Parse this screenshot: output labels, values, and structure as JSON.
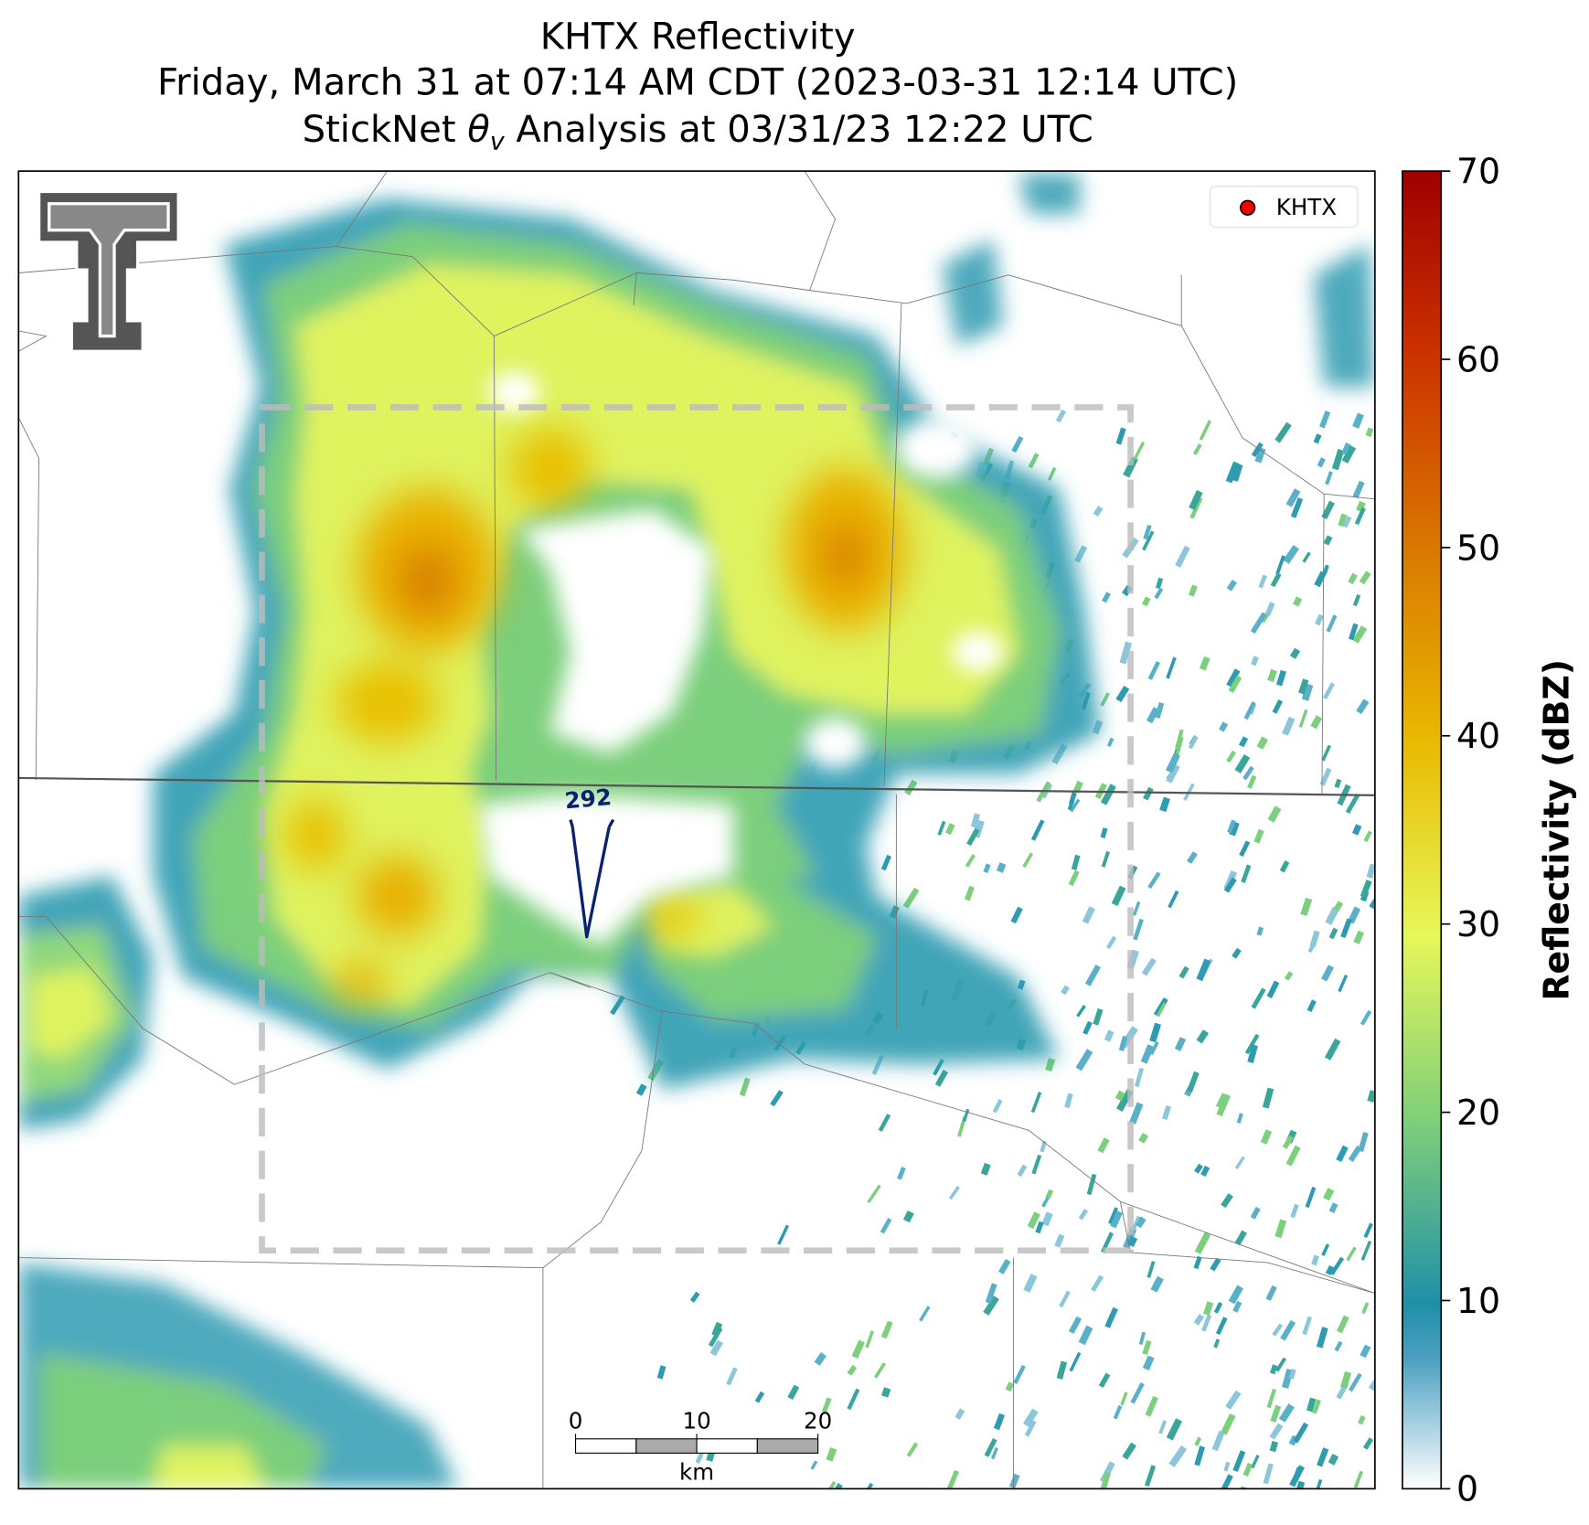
{
  "title_lines": [
    "KHTX Reflectivity",
    "Friday, March 31 at 07:14 AM CDT (2023-03-31 12:14 UTC)"
  ],
  "analysis_title": {
    "prefix": "StickNet ",
    "symbol": "θ",
    "subscript": "v",
    "suffix": " Analysis at 03/31/23 12:22 UTC"
  },
  "legend": {
    "label": "KHTX",
    "color": "#ff0000"
  },
  "contour_label": "292",
  "scale_bar": {
    "ticks": [
      0,
      10,
      20
    ],
    "unit": "km"
  },
  "colorbar": {
    "label": "Reflectivity (dBZ)",
    "lim": [
      0,
      70
    ],
    "ticks": [
      0,
      10,
      20,
      30,
      40,
      50,
      60,
      70
    ]
  }
}
